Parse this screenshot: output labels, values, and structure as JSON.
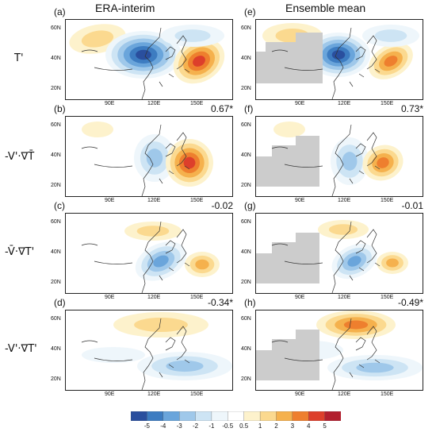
{
  "column_titles": [
    "ERA-interim",
    "Ensemble mean"
  ],
  "row_labels": [
    "T'",
    "-V'·∇T̄",
    "-V̄·∇T'",
    "-V'·∇T'"
  ],
  "lat_ticks": [
    "60N",
    "40N",
    "20N"
  ],
  "lon_ticks": [
    "90E",
    "120E",
    "150E"
  ],
  "panels": [
    {
      "label": "(a)",
      "corr": ""
    },
    {
      "label": "(e)",
      "corr": ""
    },
    {
      "label": "(b)",
      "corr": "0.67*"
    },
    {
      "label": "(f)",
      "corr": "0.73*"
    },
    {
      "label": "(c)",
      "corr": "-0.02"
    },
    {
      "label": "(g)",
      "corr": "-0.01"
    },
    {
      "label": "(d)",
      "corr": "-0.34*"
    },
    {
      "label": "(h)",
      "corr": "-0.49*"
    }
  ],
  "chart_data": {
    "type": "heatmap",
    "colorbar": {
      "ticks": [
        "-5",
        "-4",
        "-3",
        "-2",
        "-1",
        "-0.5",
        "0.5",
        "1",
        "2",
        "3",
        "4",
        "5"
      ],
      "colors": [
        "#2a4f9e",
        "#3d7cc1",
        "#6aa5db",
        "#9fc8ea",
        "#cde4f4",
        "#eef6fb",
        "#ffffff",
        "#fdf2cc",
        "#fbd98f",
        "#f5b14d",
        "#ee7f2e",
        "#dd3f2b",
        "#b21f2e"
      ]
    },
    "missing_color": "#cccccc"
  }
}
